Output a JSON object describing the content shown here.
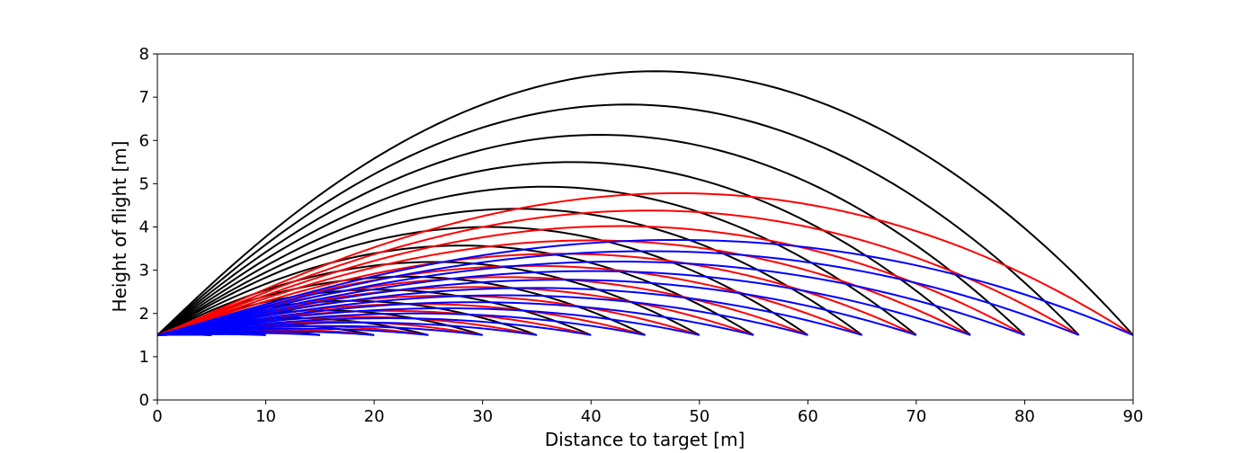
{
  "chart_data": {
    "type": "line",
    "title": "",
    "xlabel": "Distance to target [m]",
    "ylabel": "Height of flight [m]",
    "xlim": [
      0,
      90
    ],
    "ylim": [
      0,
      8
    ],
    "xticks": [
      "0",
      "10",
      "20",
      "30",
      "40",
      "50",
      "60",
      "70",
      "80",
      "90"
    ],
    "yticks": [
      "0",
      "1",
      "2",
      "3",
      "4",
      "5",
      "6",
      "7",
      "8"
    ],
    "grid": false,
    "launch_height": 1.5,
    "landing_height": 1.5,
    "target_distances": [
      5,
      10,
      15,
      20,
      25,
      30,
      35,
      40,
      45,
      50,
      55,
      60,
      65,
      70,
      75,
      80,
      85,
      90
    ],
    "series": [
      {
        "color": "#000000",
        "apex_heights": [
          1.51,
          1.56,
          1.64,
          1.75,
          1.89,
          2.07,
          2.29,
          2.55,
          2.85,
          3.19,
          3.57,
          4.0,
          4.42,
          4.93,
          5.5,
          6.13,
          6.83,
          7.6
        ]
      },
      {
        "color": "#ff0000",
        "apex_heights": [
          1.51,
          1.53,
          1.57,
          1.63,
          1.71,
          1.81,
          1.92,
          2.06,
          2.22,
          2.41,
          2.61,
          2.84,
          3.1,
          3.38,
          3.69,
          4.02,
          4.38,
          4.78
        ]
      },
      {
        "color": "#0000ff",
        "apex_heights": [
          1.51,
          1.52,
          1.55,
          1.59,
          1.65,
          1.71,
          1.79,
          1.89,
          2.0,
          2.12,
          2.26,
          2.42,
          2.59,
          2.78,
          2.98,
          3.2,
          3.44,
          3.7
        ]
      }
    ]
  }
}
